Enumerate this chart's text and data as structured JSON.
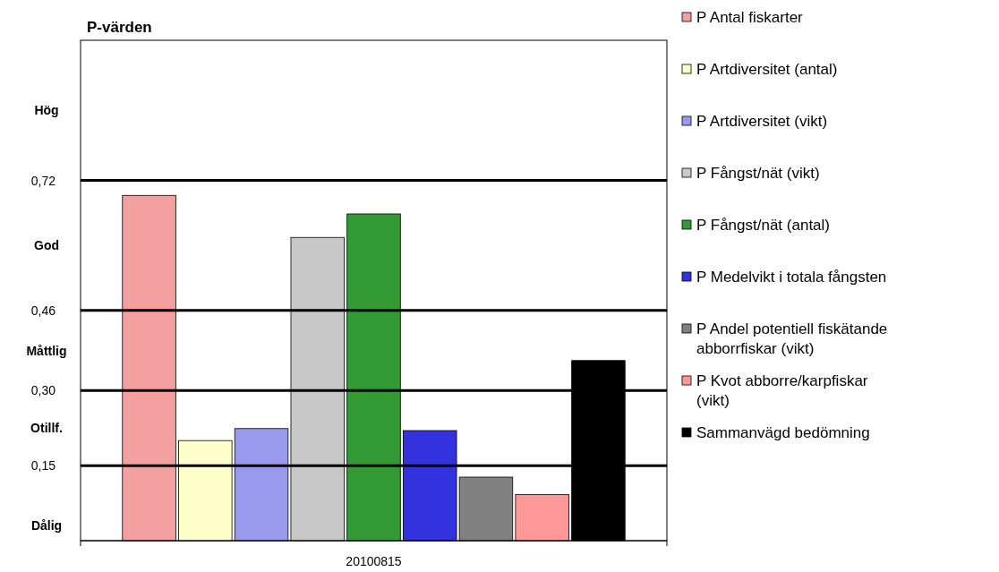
{
  "chart_data": {
    "type": "bar",
    "title": "P-värden",
    "categories": [
      "20100815"
    ],
    "series": [
      {
        "name": "P Antal fiskarter",
        "color": "#f4a0a0",
        "values": [
          0.69
        ]
      },
      {
        "name": "P Artdiversitet (antal)",
        "color": "#ffffcc",
        "values": [
          0.2
        ]
      },
      {
        "name": "P Artdiversitet (vikt)",
        "color": "#9999ee",
        "values": [
          0.224
        ]
      },
      {
        "name": "P Fångst/nät (vikt)",
        "color": "#c8c8c8",
        "values": [
          0.606
        ]
      },
      {
        "name": "P Fångst/nät (antal)",
        "color": "#339933",
        "values": [
          0.653
        ]
      },
      {
        "name": "P Medelvikt i totala fångsten",
        "color": "#3333dd",
        "values": [
          0.22
        ]
      },
      {
        "name": "P Andel potentiell fiskätande abborrfiskar (vikt)",
        "color": "#808080",
        "values": [
          0.127
        ]
      },
      {
        "name": "P Kvot abborre/karpfiskar (vikt)",
        "color": "#ff9999",
        "values": [
          0.092
        ]
      },
      {
        "name": "Sammanvägd bedömning",
        "color": "#000000",
        "values": [
          0.36
        ]
      }
    ],
    "ylim": [
      0,
      1
    ],
    "yticks": [
      {
        "value": 0.15,
        "label": "0,15"
      },
      {
        "value": 0.3,
        "label": "0,30"
      },
      {
        "value": 0.46,
        "label": "0,46"
      },
      {
        "value": 0.72,
        "label": "0,72"
      }
    ],
    "ref_lines": [
      {
        "axis": "y",
        "value": 0.15,
        "color": "#000000"
      },
      {
        "axis": "y",
        "value": 0.3,
        "color": "#000000"
      },
      {
        "axis": "y",
        "value": 0.46,
        "color": "#000000"
      },
      {
        "axis": "y",
        "value": 0.72,
        "color": "#000000"
      }
    ],
    "annotations": [
      "Dålig",
      "Otillf.",
      "Måttlig",
      "God",
      "Hög"
    ],
    "legend": "right"
  }
}
